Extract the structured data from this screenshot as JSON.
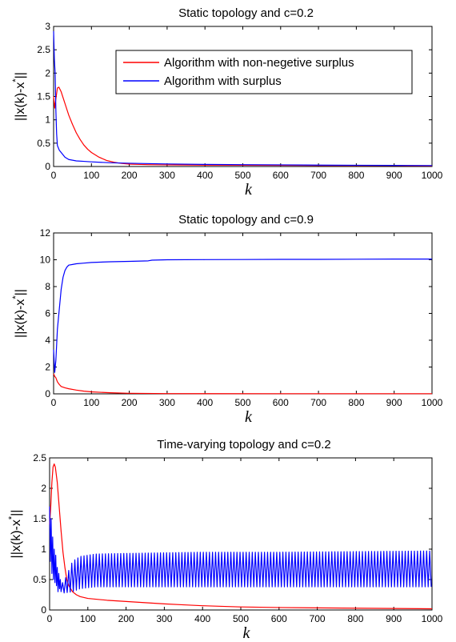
{
  "chart_data": [
    {
      "type": "line",
      "title": "Static topology and c=0.2",
      "xlabel": "k",
      "ylabel": "||x(k)-x*||",
      "xlim": [
        0,
        1000
      ],
      "ylim": [
        0,
        3
      ],
      "xticks": [
        0,
        100,
        200,
        300,
        400,
        500,
        600,
        700,
        800,
        900,
        1000
      ],
      "yticks": [
        0,
        0.5,
        1,
        1.5,
        2,
        2.5,
        3
      ],
      "grid": false,
      "legend": "top-right",
      "series": [
        {
          "name": "Algorithm with non-negetive surplus",
          "color": "#ff0000",
          "points": [
            [
              0,
              1.5
            ],
            [
              3,
              1.25
            ],
            [
              6,
              1.45
            ],
            [
              10,
              1.68
            ],
            [
              14,
              1.7
            ],
            [
              20,
              1.6
            ],
            [
              30,
              1.35
            ],
            [
              40,
              1.1
            ],
            [
              50,
              0.9
            ],
            [
              60,
              0.72
            ],
            [
              70,
              0.58
            ],
            [
              80,
              0.46
            ],
            [
              90,
              0.37
            ],
            [
              100,
              0.3
            ],
            [
              120,
              0.2
            ],
            [
              140,
              0.13
            ],
            [
              160,
              0.09
            ],
            [
              180,
              0.065
            ],
            [
              200,
              0.05
            ],
            [
              250,
              0.04
            ],
            [
              300,
              0.035
            ],
            [
              400,
              0.03
            ],
            [
              500,
              0.027
            ],
            [
              600,
              0.025
            ],
            [
              700,
              0.022
            ],
            [
              800,
              0.02
            ],
            [
              900,
              0.018
            ],
            [
              1000,
              0.015
            ]
          ]
        },
        {
          "name": "Algorithm with surplus",
          "color": "#0000ff",
          "points": [
            [
              0,
              2.9
            ],
            [
              2,
              2.3
            ],
            [
              4,
              2.0
            ],
            [
              6,
              1.2
            ],
            [
              8,
              0.7
            ],
            [
              10,
              0.45
            ],
            [
              15,
              0.35
            ],
            [
              20,
              0.3
            ],
            [
              30,
              0.2
            ],
            [
              40,
              0.15
            ],
            [
              60,
              0.12
            ],
            [
              80,
              0.11
            ],
            [
              100,
              0.1
            ],
            [
              150,
              0.08
            ],
            [
              200,
              0.07
            ],
            [
              300,
              0.055
            ],
            [
              400,
              0.045
            ],
            [
              500,
              0.04
            ],
            [
              600,
              0.035
            ],
            [
              700,
              0.03
            ],
            [
              800,
              0.027
            ],
            [
              900,
              0.024
            ],
            [
              1000,
              0.02
            ]
          ]
        }
      ]
    },
    {
      "type": "line",
      "title": "Static topology and c=0.9",
      "xlabel": "k",
      "ylabel": "||x(k)-x*||",
      "xlim": [
        0,
        1000
      ],
      "ylim": [
        0,
        12
      ],
      "xticks": [
        0,
        100,
        200,
        300,
        400,
        500,
        600,
        700,
        800,
        900,
        1000
      ],
      "yticks": [
        0,
        2,
        4,
        6,
        8,
        10,
        12
      ],
      "grid": false,
      "series": [
        {
          "color": "#0000ff",
          "points": [
            [
              0,
              3.3
            ],
            [
              3,
              1.6
            ],
            [
              6,
              2.5
            ],
            [
              10,
              4.8
            ],
            [
              15,
              6.3
            ],
            [
              20,
              7.8
            ],
            [
              25,
              8.7
            ],
            [
              30,
              9.2
            ],
            [
              35,
              9.45
            ],
            [
              40,
              9.6
            ],
            [
              50,
              9.65
            ],
            [
              60,
              9.7
            ],
            [
              80,
              9.75
            ],
            [
              100,
              9.8
            ],
            [
              150,
              9.85
            ],
            [
              200,
              9.88
            ],
            [
              250,
              9.92
            ],
            [
              260,
              9.97
            ],
            [
              300,
              10.0
            ],
            [
              400,
              10.01
            ],
            [
              500,
              10.02
            ],
            [
              600,
              10.03
            ],
            [
              700,
              10.03
            ],
            [
              800,
              10.04
            ],
            [
              900,
              10.05
            ],
            [
              1000,
              10.05
            ]
          ]
        },
        {
          "color": "#ff0000",
          "points": [
            [
              0,
              1.5
            ],
            [
              3,
              1.3
            ],
            [
              6,
              1.2
            ],
            [
              10,
              0.9
            ],
            [
              15,
              0.7
            ],
            [
              20,
              0.55
            ],
            [
              30,
              0.45
            ],
            [
              40,
              0.38
            ],
            [
              60,
              0.28
            ],
            [
              80,
              0.2
            ],
            [
              100,
              0.15
            ],
            [
              150,
              0.08
            ],
            [
              200,
              0.04
            ],
            [
              300,
              0.02
            ],
            [
              400,
              0.015
            ],
            [
              600,
              0.012
            ],
            [
              800,
              0.01
            ],
            [
              1000,
              0.01
            ]
          ]
        }
      ]
    },
    {
      "type": "line",
      "title": "Time-varying topology and c=0.2",
      "xlabel": "k",
      "ylabel": "||x(k)-x*||",
      "xlim": [
        0,
        1000
      ],
      "ylim": [
        0,
        2.5
      ],
      "xticks": [
        0,
        100,
        200,
        300,
        400,
        500,
        600,
        700,
        800,
        900,
        1000
      ],
      "yticks": [
        0,
        0.5,
        1,
        1.5,
        2,
        2.5
      ],
      "grid": false,
      "series": [
        {
          "color": "#ff0000",
          "points": [
            [
              0,
              1.4
            ],
            [
              3,
              1.7
            ],
            [
              6,
              2.1
            ],
            [
              9,
              2.35
            ],
            [
              12,
              2.4
            ],
            [
              15,
              2.35
            ],
            [
              20,
              2.1
            ],
            [
              25,
              1.7
            ],
            [
              30,
              1.3
            ],
            [
              35,
              0.95
            ],
            [
              40,
              0.7
            ],
            [
              45,
              0.5
            ],
            [
              50,
              0.4
            ],
            [
              60,
              0.3
            ],
            [
              70,
              0.25
            ],
            [
              80,
              0.22
            ],
            [
              100,
              0.19
            ],
            [
              150,
              0.16
            ],
            [
              200,
              0.14
            ],
            [
              250,
              0.12
            ],
            [
              300,
              0.1
            ],
            [
              350,
              0.085
            ],
            [
              400,
              0.07
            ],
            [
              450,
              0.06
            ],
            [
              500,
              0.05
            ],
            [
              600,
              0.04
            ],
            [
              700,
              0.035
            ],
            [
              800,
              0.03
            ],
            [
              900,
              0.025
            ],
            [
              1000,
              0.02
            ]
          ]
        },
        {
          "color": "#0000ff",
          "oscillating": true,
          "period": 8,
          "points": [
            [
              0,
              1.7
            ],
            [
              2,
              0.8
            ],
            [
              4,
              1.5
            ],
            [
              6,
              0.6
            ],
            [
              8,
              1.2
            ],
            [
              10,
              0.5
            ],
            [
              12,
              1.0
            ],
            [
              14,
              0.45
            ],
            [
              16,
              0.9
            ],
            [
              18,
              0.4
            ],
            [
              20,
              0.7
            ],
            [
              22,
              0.3
            ],
            [
              24,
              0.6
            ],
            [
              26,
              0.35
            ],
            [
              28,
              0.5
            ],
            [
              30,
              0.3
            ],
            [
              34,
              0.45
            ],
            [
              38,
              0.28
            ]
          ],
          "band": [
            [
              40,
              0.28,
              0.5
            ],
            [
              60,
              0.3,
              0.8
            ],
            [
              80,
              0.35,
              0.88
            ],
            [
              120,
              0.38,
              0.92
            ],
            [
              200,
              0.38,
              0.93
            ],
            [
              400,
              0.38,
              0.95
            ],
            [
              600,
              0.38,
              0.95
            ],
            [
              800,
              0.38,
              0.96
            ],
            [
              1000,
              0.38,
              0.97
            ]
          ]
        }
      ]
    }
  ]
}
